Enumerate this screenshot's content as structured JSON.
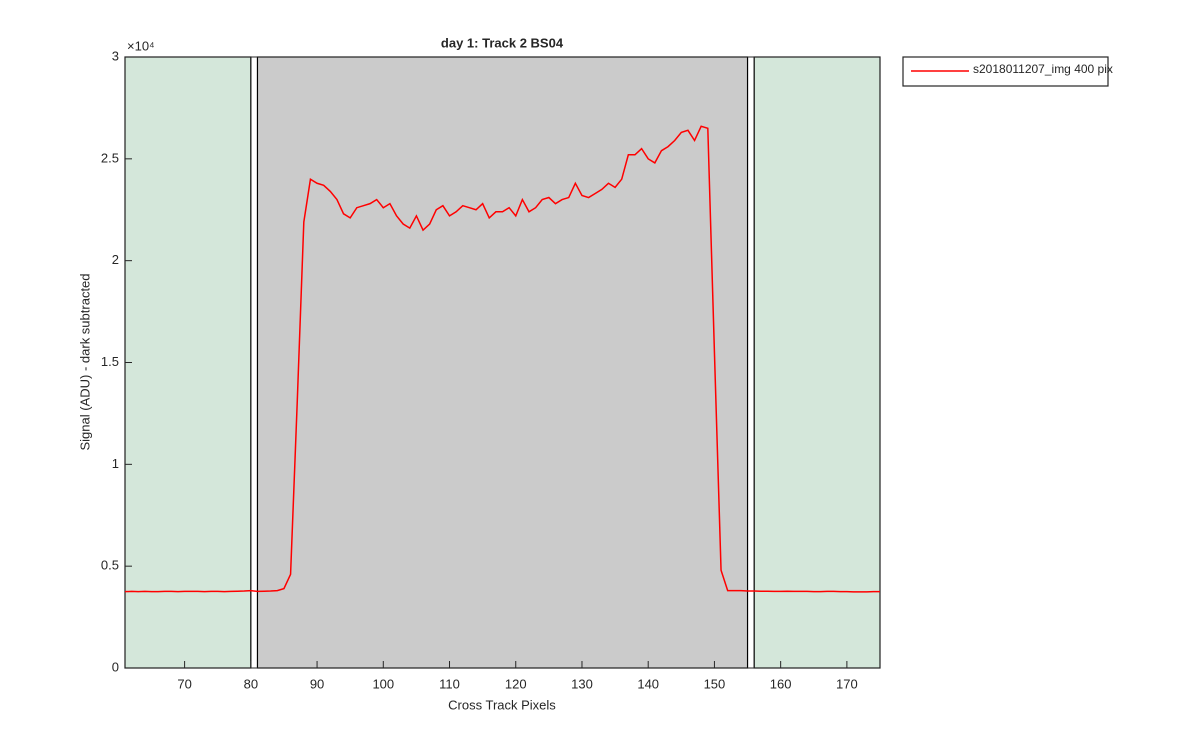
{
  "chart_data": {
    "type": "line",
    "title": "day 1: Track 2  BS04",
    "xlabel": "Cross Track Pixels",
    "ylabel": "Signal (ADU) - dark subtracted",
    "y_exponent_label": "×10⁴",
    "xlim": [
      61,
      175
    ],
    "ylim": [
      0,
      3
    ],
    "xticks": [
      70,
      80,
      90,
      100,
      110,
      120,
      130,
      140,
      150,
      160,
      170
    ],
    "yticks": [
      0,
      0.5,
      1,
      1.5,
      2,
      2.5,
      3
    ],
    "grid": false,
    "legend": "outside-upper-right",
    "shaded_regions": [
      {
        "x": [
          61,
          80
        ],
        "color": "#d4e7da"
      },
      {
        "x": [
          81,
          155
        ],
        "color": "#cbcbcb"
      },
      {
        "x": [
          156,
          175
        ],
        "color": "#d4e7da"
      }
    ],
    "x": [
      61,
      62,
      63,
      64,
      65,
      66,
      67,
      68,
      69,
      70,
      71,
      72,
      73,
      74,
      75,
      76,
      77,
      78,
      79,
      80,
      81,
      82,
      83,
      84,
      85,
      86,
      87,
      88,
      89,
      90,
      91,
      92,
      93,
      94,
      95,
      96,
      97,
      98,
      99,
      100,
      101,
      102,
      103,
      104,
      105,
      106,
      107,
      108,
      109,
      110,
      111,
      112,
      113,
      114,
      115,
      116,
      117,
      118,
      119,
      120,
      121,
      122,
      123,
      124,
      125,
      126,
      127,
      128,
      129,
      130,
      131,
      132,
      133,
      134,
      135,
      136,
      137,
      138,
      139,
      140,
      141,
      142,
      143,
      144,
      145,
      146,
      147,
      148,
      149,
      150,
      151,
      152,
      153,
      154,
      155,
      156,
      157,
      158,
      159,
      160,
      161,
      162,
      163,
      164,
      165,
      166,
      167,
      168,
      169,
      170,
      171,
      172,
      173,
      174,
      175
    ],
    "series": [
      {
        "name": "s2018011207_img 400 pix",
        "color": "#ff0000",
        "values": [
          0.375,
          0.376,
          0.375,
          0.376,
          0.375,
          0.375,
          0.376,
          0.376,
          0.375,
          0.376,
          0.376,
          0.376,
          0.375,
          0.376,
          0.376,
          0.375,
          0.376,
          0.377,
          0.378,
          0.38,
          0.376,
          0.377,
          0.378,
          0.38,
          0.39,
          0.46,
          1.3,
          2.19,
          2.4,
          2.38,
          2.37,
          2.34,
          2.3,
          2.23,
          2.21,
          2.26,
          2.27,
          2.28,
          2.3,
          2.26,
          2.28,
          2.22,
          2.18,
          2.16,
          2.22,
          2.15,
          2.18,
          2.25,
          2.27,
          2.22,
          2.24,
          2.27,
          2.26,
          2.25,
          2.28,
          2.21,
          2.24,
          2.24,
          2.26,
          2.22,
          2.3,
          2.24,
          2.26,
          2.3,
          2.31,
          2.28,
          2.3,
          2.31,
          2.38,
          2.32,
          2.31,
          2.33,
          2.35,
          2.38,
          2.36,
          2.4,
          2.52,
          2.52,
          2.55,
          2.5,
          2.48,
          2.54,
          2.56,
          2.59,
          2.63,
          2.64,
          2.59,
          2.66,
          2.65,
          1.55,
          0.48,
          0.38,
          0.38,
          0.38,
          0.378,
          0.378,
          0.377,
          0.377,
          0.376,
          0.376,
          0.377,
          0.376,
          0.376,
          0.376,
          0.375,
          0.375,
          0.376,
          0.376,
          0.375,
          0.375,
          0.374,
          0.374,
          0.374,
          0.375,
          0.375
        ]
      }
    ]
  }
}
